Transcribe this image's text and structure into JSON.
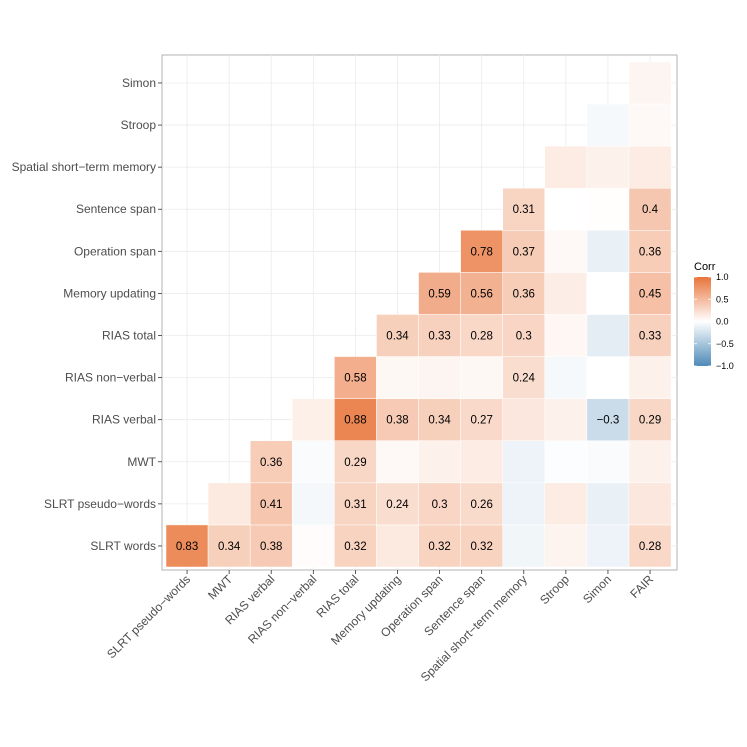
{
  "chart_data": {
    "type": "heatmap",
    "x_labels": [
      "SLRT pseudo−words",
      "MWT",
      "RIAS verbal",
      "RIAS non−verbal",
      "RIAS total",
      "Memory updating",
      "Operation span",
      "Sentence span",
      "Spatial short−term memory",
      "Stroop",
      "Simon",
      "FAIR"
    ],
    "y_labels": [
      "SLRT words",
      "SLRT pseudo−words",
      "MWT",
      "RIAS verbal",
      "RIAS non−verbal",
      "RIAS total",
      "Memory updating",
      "Operation span",
      "Sentence span",
      "Spatial short−term memory",
      "Stroop",
      "Simon"
    ],
    "values": [
      [
        0.83,
        0.34,
        0.38,
        0.02,
        0.32,
        0.15,
        0.32,
        0.32,
        -0.08,
        0.08,
        -0.1,
        0.28
      ],
      [
        null,
        0.15,
        0.41,
        -0.06,
        0.31,
        0.24,
        0.3,
        0.26,
        -0.1,
        0.14,
        -0.12,
        0.17
      ],
      [
        null,
        null,
        0.36,
        -0.03,
        0.29,
        0.04,
        0.1,
        0.14,
        -0.1,
        -0.02,
        -0.03,
        0.1
      ],
      [
        null,
        null,
        null,
        0.11,
        0.88,
        0.38,
        0.34,
        0.27,
        0.17,
        0.1,
        -0.3,
        0.29
      ],
      [
        null,
        null,
        null,
        null,
        0.58,
        0.05,
        0.07,
        0.05,
        0.24,
        -0.05,
        0.0,
        0.1
      ],
      [
        null,
        null,
        null,
        null,
        null,
        0.34,
        0.33,
        0.28,
        0.3,
        0.06,
        -0.15,
        0.33
      ],
      [
        null,
        null,
        null,
        null,
        null,
        null,
        0.59,
        0.56,
        0.36,
        0.12,
        0.0,
        0.45
      ],
      [
        null,
        null,
        null,
        null,
        null,
        null,
        null,
        0.78,
        0.37,
        0.04,
        -0.12,
        0.36
      ],
      [
        null,
        null,
        null,
        null,
        null,
        null,
        null,
        null,
        0.31,
        0.0,
        0.01,
        0.4
      ],
      [
        null,
        null,
        null,
        null,
        null,
        null,
        null,
        null,
        null,
        0.14,
        0.1,
        0.14
      ],
      [
        null,
        null,
        null,
        null,
        null,
        null,
        null,
        null,
        null,
        null,
        -0.05,
        0.04
      ],
      [
        null,
        null,
        null,
        null,
        null,
        null,
        null,
        null,
        null,
        null,
        null,
        0.07
      ]
    ],
    "cell_labels": [
      [
        "0.83",
        "0.34",
        "0.38",
        "",
        "0.32",
        "",
        "0.32",
        "0.32",
        "",
        "",
        "",
        "0.28"
      ],
      [
        "",
        "",
        "0.41",
        "",
        "0.31",
        "0.24",
        "0.3",
        "0.26",
        "",
        "",
        "",
        ""
      ],
      [
        "",
        "",
        "0.36",
        "",
        "0.29",
        "",
        "",
        "",
        "",
        "",
        "",
        ""
      ],
      [
        "",
        "",
        "",
        "",
        "0.88",
        "0.38",
        "0.34",
        "0.27",
        "",
        "",
        "−0.3",
        "0.29"
      ],
      [
        "",
        "",
        "",
        "",
        "0.58",
        "",
        "",
        "",
        "0.24",
        "",
        "",
        ""
      ],
      [
        "",
        "",
        "",
        "",
        "",
        "0.34",
        "0.33",
        "0.28",
        "0.3",
        "",
        "",
        "0.33"
      ],
      [
        "",
        "",
        "",
        "",
        "",
        "",
        "0.59",
        "0.56",
        "0.36",
        "",
        "",
        "0.45"
      ],
      [
        "",
        "",
        "",
        "",
        "",
        "",
        "",
        "0.78",
        "0.37",
        "",
        "",
        "0.36"
      ],
      [
        "",
        "",
        "",
        "",
        "",
        "",
        "",
        "",
        "0.31",
        "",
        "",
        "0.4"
      ],
      [
        "",
        "",
        "",
        "",
        "",
        "",
        "",
        "",
        "",
        "",
        "",
        ""
      ],
      [
        "",
        "",
        "",
        "",
        "",
        "",
        "",
        "",
        "",
        "",
        "",
        ""
      ],
      [
        "",
        "",
        "",
        "",
        "",
        "",
        "",
        "",
        "",
        "",
        "",
        ""
      ]
    ],
    "color_low": "#4f8ab8",
    "color_mid": "#ffffff",
    "color_high": "#e8743a",
    "grid": true,
    "legend": {
      "title": "Corr",
      "position": "right",
      "limits": [
        -1,
        1
      ],
      "breaks": [
        1.0,
        0.5,
        0.0,
        -0.5,
        -1.0
      ],
      "break_labels": [
        "1.0",
        "0.5",
        "0.0",
        "−0.5",
        "−1.0"
      ]
    }
  }
}
